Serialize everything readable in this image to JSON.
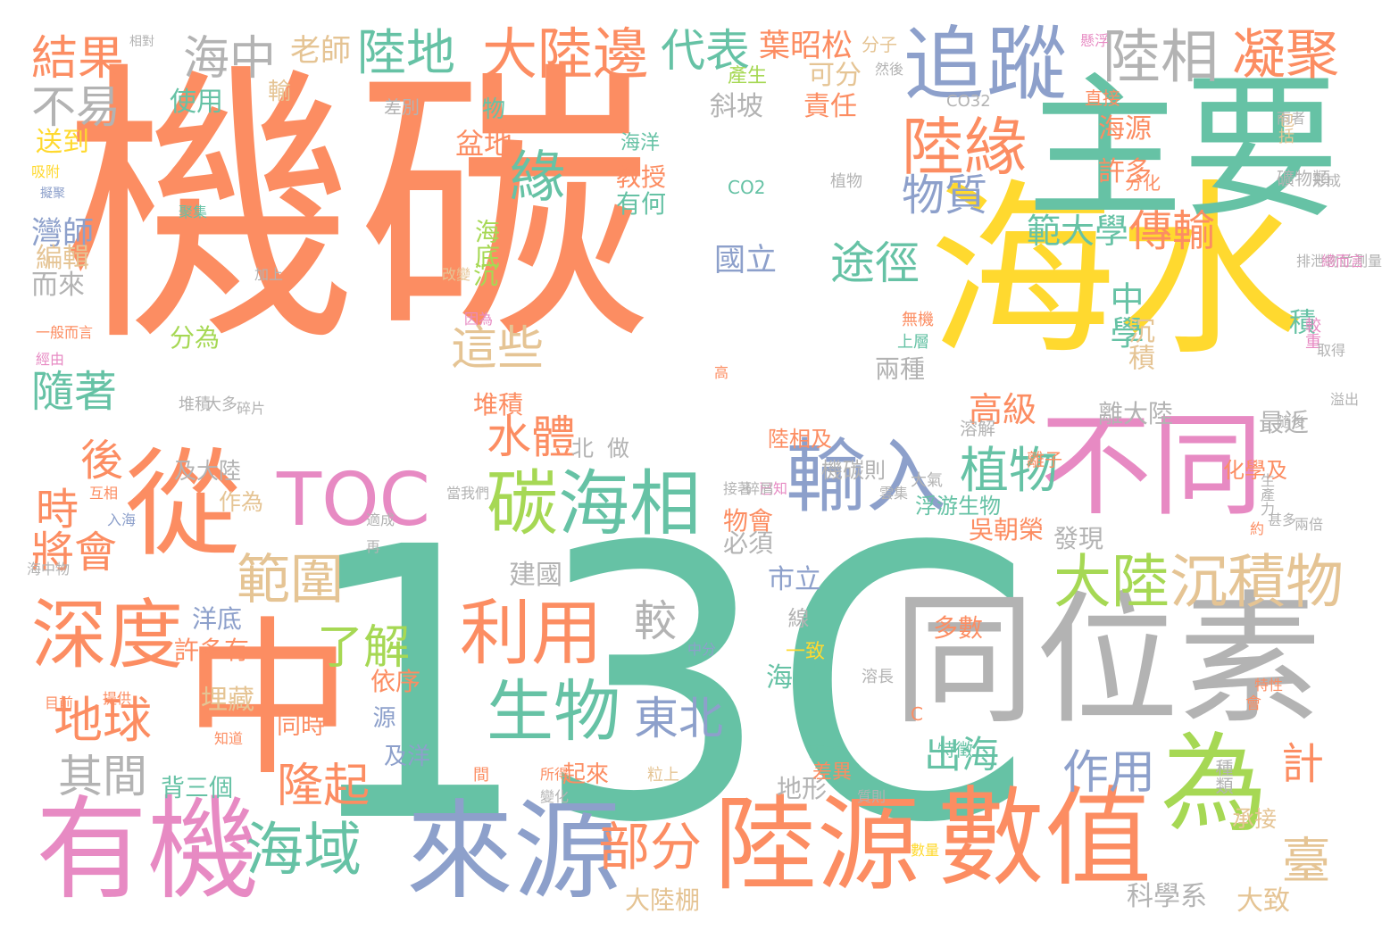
{
  "palette": {
    "orange": "#fc8d62",
    "teal": "#66c2a5",
    "blue": "#8da0cb",
    "pink": "#e78ac3",
    "green": "#a6d854",
    "yellow": "#ffd92f",
    "tan": "#e5c494",
    "gray": "#b3b3b3"
  },
  "words": [
    "機碳",
    "13C",
    "海水",
    "主要",
    "同位素",
    "中",
    "從",
    "不同",
    "為",
    "有機",
    "來源",
    "陸源",
    "數值",
    "TOC",
    "輸入",
    "碳",
    "海相",
    "深度",
    "利用",
    "生物",
    "追",
    "蹤",
    "陸相",
    "凝聚",
    "大陸邊",
    "代表",
    "陸地",
    "海中",
    "結果",
    "不易",
    "陸緣",
    "緣",
    "物質",
    "植物",
    "途徑",
    "傳輸",
    "大陸",
    "沉積物",
    "範圍",
    "了解",
    "地球",
    "東北",
    "部分",
    "海域",
    "隆起",
    "其間",
    "後",
    "時",
    "將會",
    "隨著",
    "這些",
    "水體",
    "較",
    "臺",
    "計",
    "作用",
    "出海",
    "高級",
    "範大學",
    "中學",
    "老師",
    "葉昭松",
    "可分",
    "責任",
    "斜坡",
    "盆地",
    "海源",
    "許多",
    "包括",
    "教授",
    "有何",
    "海底",
    "沉",
    "國立",
    "分為",
    "堆積",
    "兩種",
    "沉積",
    "積",
    "最近",
    "離大陸",
    "灣師",
    "編輯",
    "而來",
    "送到",
    "使用",
    "物",
    "差別",
    "海洋",
    "吳朝榮",
    "發現",
    "物會",
    "必須",
    "市立",
    "建國",
    "洋底",
    "許多有",
    "依序",
    "源",
    "線",
    "海岸",
    "及洋",
    "地形",
    "起來",
    "科學系",
    "大陸棚",
    "大致",
    "承接",
    "種類",
    "多數",
    "同時",
    "埋藏",
    "背三個",
    "做",
    "北",
    "陸相及",
    "及大陸",
    "機碳則",
    "作為",
    "浮游生物",
    "化學及",
    "分子",
    "輸",
    "產生",
    "直接",
    "CO32",
    "分化",
    "礦物類",
    "形成",
    "植物",
    "CO2",
    "加上",
    "改變",
    "因為",
    "無機",
    "上層",
    "高",
    "堆積",
    "大多",
    "較重",
    "溶解",
    "離子",
    "大氣",
    "差異",
    "會",
    "C",
    "特徵",
    "兩者",
    "一致",
    "中分",
    "特性",
    "溶長",
    "知道",
    "提供",
    "目前",
    "互相",
    "入海",
    "適成",
    "經由",
    "一般而言",
    "擬聚",
    "吸附",
    "聚集",
    "相對",
    "已知",
    "再",
    "接著",
    "碎屑",
    "雲集",
    "排泄物並測量",
    "當我們",
    "海中物",
    "碎片",
    "間",
    "所得",
    "粒上",
    "變化",
    "質則",
    "數量",
    "約",
    "兩倍",
    "生產力",
    "甚多",
    "取得",
    "溢出",
    "總而言",
    "隨後",
    "雨者",
    "懸浮",
    "然後"
  ]
}
